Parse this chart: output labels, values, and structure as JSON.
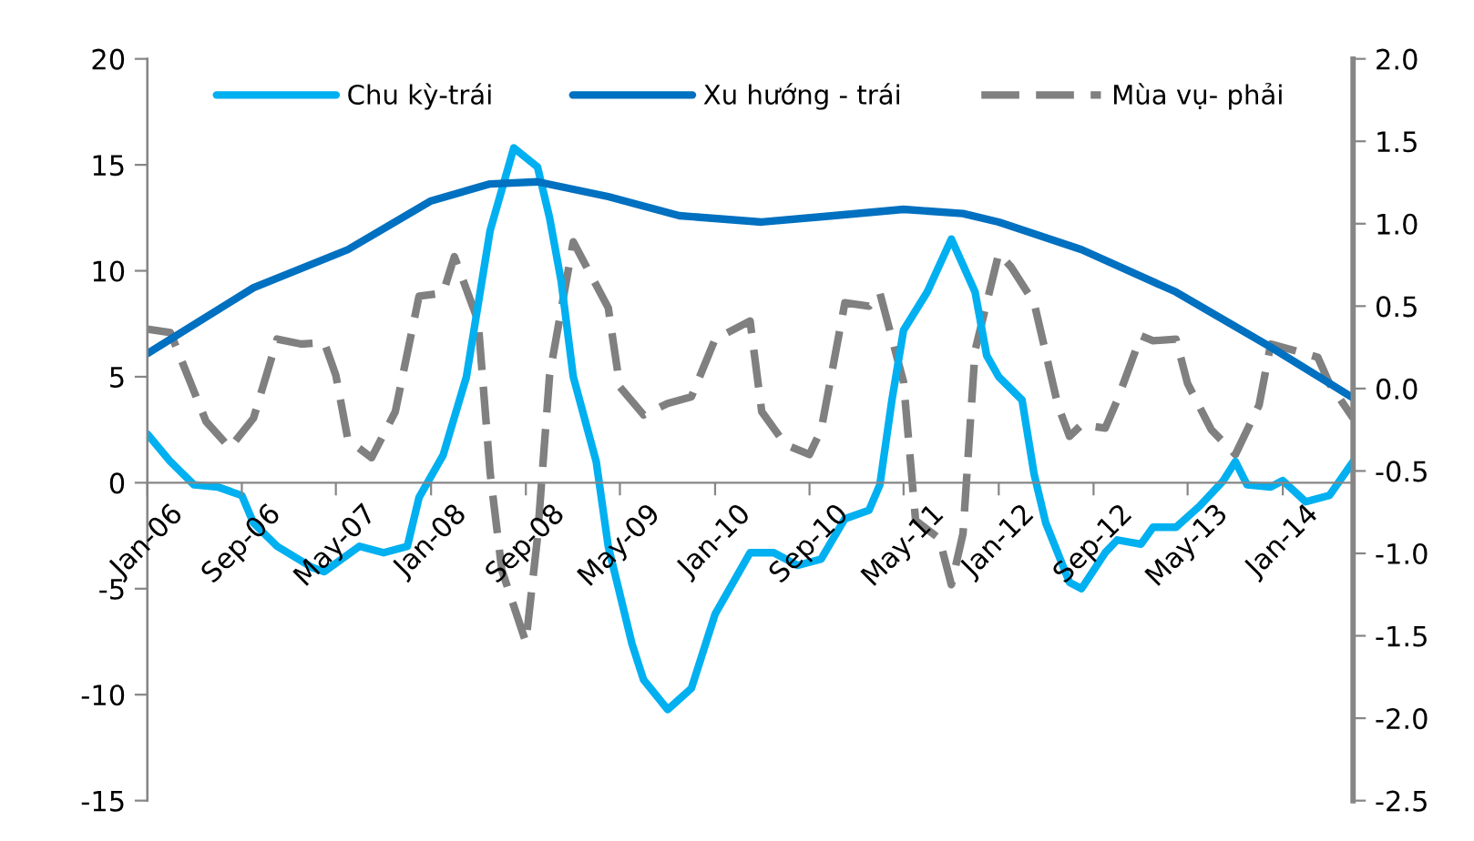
{
  "chart_data": {
    "type": "line",
    "legend": "top",
    "grid": false,
    "line_style": "solid",
    "marker": "none",
    "xlim": [
      "2006-01",
      "2014-07"
    ],
    "xticks": [
      {
        "value": "2006-01",
        "label": "Jan-06"
      },
      {
        "value": "2006-09",
        "label": "Sep-06"
      },
      {
        "value": "2007-05",
        "label": "May-07"
      },
      {
        "value": "2008-01",
        "label": "Jan-08"
      },
      {
        "value": "2008-09",
        "label": "Sep-08"
      },
      {
        "value": "2009-05",
        "label": "May-09"
      },
      {
        "value": "2010-01",
        "label": "Jan-10"
      },
      {
        "value": "2010-09",
        "label": "Sep-10"
      },
      {
        "value": "2011-05",
        "label": "May-11"
      },
      {
        "value": "2012-01",
        "label": "Jan-12"
      },
      {
        "value": "2012-09",
        "label": "Sep-12"
      },
      {
        "value": "2013-05",
        "label": "May-13"
      },
      {
        "value": "2014-01",
        "label": "Jan-14"
      }
    ],
    "ylim": [
      -15,
      20
    ],
    "yticks": [
      -15,
      -10,
      -5,
      0,
      5,
      10,
      15,
      20
    ],
    "y2lim": [
      -2.5,
      2.0
    ],
    "y2ticks": [
      {
        "value": -2.5,
        "label": "-2.5"
      },
      {
        "value": -2.0,
        "label": "-2.0"
      },
      {
        "value": -1.5,
        "label": "-1.5"
      },
      {
        "value": -1.0,
        "label": "-1.0"
      },
      {
        "value": -0.5,
        "label": "-0.5"
      },
      {
        "value": 0,
        "label": "0.0"
      },
      {
        "value": 0.5,
        "label": "0.5"
      },
      {
        "value": 1.0,
        "label": "1.0"
      },
      {
        "value": 1.5,
        "label": "1.5"
      },
      {
        "value": 2.0,
        "label": "2.0"
      }
    ],
    "series": [
      {
        "name": "Chu kỳ-trái",
        "color": "#00b0f0",
        "x": [
          "2006-01",
          "2006-03",
          "2006-05",
          "2006-07",
          "2006-09",
          "2006-10",
          "2006-12",
          "2007-03",
          "2007-04",
          "2007-07",
          "2007-09",
          "2007-11",
          "2007-12",
          "2008-02",
          "2008-04",
          "2008-06",
          "2008-08",
          "2008-10",
          "2008-11",
          "2008-12",
          "2009-01",
          "2009-03",
          "2009-04",
          "2009-06",
          "2009-07",
          "2009-09",
          "2009-11",
          "2010-01",
          "2010-04",
          "2010-06",
          "2010-08",
          "2010-10",
          "2010-12",
          "2011-02",
          "2011-03",
          "2011-04",
          "2011-05",
          "2011-07",
          "2011-09",
          "2011-11",
          "2011-12",
          "2012-01",
          "2012-03",
          "2012-04",
          "2012-05",
          "2012-07",
          "2012-08",
          "2012-10",
          "2012-11",
          "2013-01",
          "2013-02",
          "2013-04",
          "2013-06",
          "2013-08",
          "2013-09",
          "2013-10",
          "2013-12",
          "2014-01",
          "2014-03",
          "2014-05",
          "2014-07"
        ],
        "values": [
          2.3,
          1.0,
          -0.1,
          -0.2,
          -0.6,
          -1.9,
          -3.0,
          -4.0,
          -4.2,
          -3.0,
          -3.3,
          -3.0,
          -0.7,
          1.3,
          5.0,
          11.9,
          15.8,
          14.9,
          12.5,
          9.5,
          5.0,
          1.0,
          -3.0,
          -7.6,
          -9.3,
          -10.7,
          -9.7,
          -6.2,
          -3.3,
          -3.3,
          -3.9,
          -3.6,
          -1.7,
          -1.3,
          -0.1,
          3.9,
          7.2,
          9.0,
          11.5,
          9.0,
          6.0,
          5.0,
          3.9,
          0.4,
          -1.9,
          -4.7,
          -5.0,
          -3.3,
          -2.7,
          -2.9,
          -2.1,
          -2.1,
          -1.1,
          0.1,
          1.0,
          -0.1,
          -0.2,
          0.1,
          -0.9,
          -0.6,
          1.0
        ]
      },
      {
        "name": "Xu hướng - trái",
        "color": "#0070c0",
        "x": [
          "2006-01",
          "2006-10",
          "2007-06",
          "2008-01",
          "2008-06",
          "2008-10",
          "2009-04",
          "2009-10",
          "2010-05",
          "2010-11",
          "2011-05",
          "2011-10",
          "2012-01",
          "2012-08",
          "2013-04",
          "2013-12",
          "2014-07"
        ],
        "values": [
          6.1,
          9.2,
          11.0,
          13.3,
          14.1,
          14.2,
          13.5,
          12.6,
          12.3,
          12.6,
          12.9,
          12.7,
          12.3,
          11.0,
          9.0,
          6.4,
          4.0
        ]
      },
      {
        "name": "Mùa vụ- phải",
        "color": "#808080",
        "axis": "y2",
        "line_style": "dashed",
        "x": [
          "2006-01",
          "2006-03",
          "2006-06",
          "2006-08",
          "2006-10",
          "2006-12",
          "2007-02",
          "2007-04",
          "2007-05",
          "2007-06",
          "2007-08",
          "2007-10",
          "2007-12",
          "2008-02",
          "2008-03",
          "2008-05",
          "2008-06",
          "2008-07",
          "2008-09",
          "2008-10",
          "2008-11",
          "2009-01",
          "2009-04",
          "2009-05",
          "2009-07",
          "2009-09",
          "2009-11",
          "2010-01",
          "2010-04",
          "2010-05",
          "2010-07",
          "2010-09",
          "2010-10",
          "2010-12",
          "2011-02",
          "2011-03",
          "2011-05",
          "2011-06",
          "2011-08",
          "2011-09",
          "2011-10",
          "2011-11",
          "2012-01",
          "2012-02",
          "2012-04",
          "2012-06",
          "2012-07",
          "2012-08",
          "2012-10",
          "2012-11",
          "2013-01",
          "2013-02",
          "2013-04",
          "2013-05",
          "2013-07",
          "2013-09",
          "2013-11",
          "2013-12",
          "2014-02",
          "2014-04",
          "2014-05",
          "2014-07"
        ],
        "values": [
          0.36,
          0.34,
          -0.2,
          -0.36,
          -0.18,
          0.3,
          0.27,
          0.28,
          0.08,
          -0.31,
          -0.42,
          -0.14,
          0.56,
          0.58,
          0.8,
          0.41,
          -0.51,
          -1.1,
          -1.54,
          -0.9,
          0.08,
          0.89,
          0.49,
          0.01,
          -0.16,
          -0.09,
          -0.05,
          0.3,
          0.41,
          -0.14,
          -0.34,
          -0.4,
          -0.25,
          0.52,
          0.5,
          0.58,
          0.04,
          -0.8,
          -0.91,
          -1.19,
          -0.88,
          0.23,
          0.82,
          0.74,
          0.52,
          -0.1,
          -0.29,
          -0.22,
          -0.24,
          -0.07,
          0.32,
          0.29,
          0.3,
          0.03,
          -0.25,
          -0.4,
          -0.1,
          0.27,
          0.23,
          0.19,
          0.03,
          -0.18
        ]
      }
    ]
  }
}
